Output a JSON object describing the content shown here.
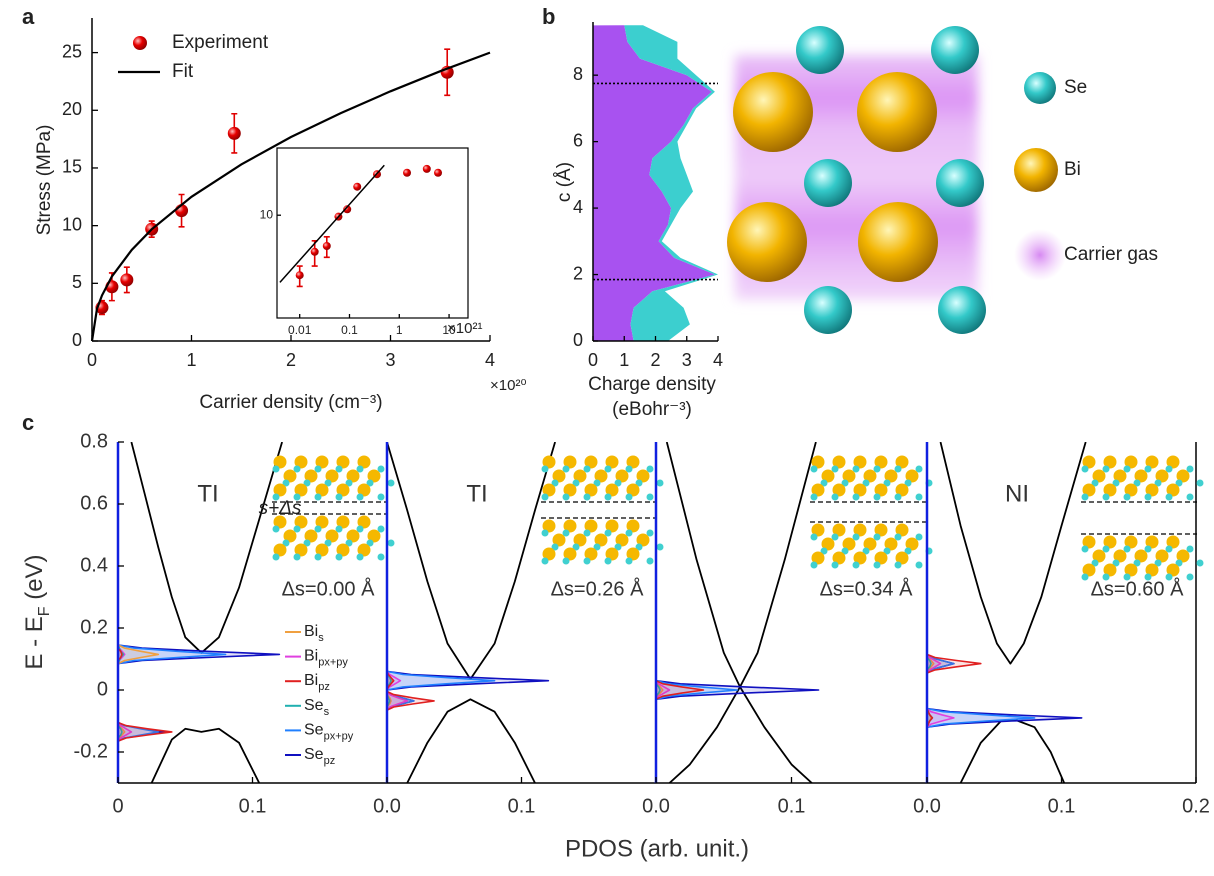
{
  "panel_letters": [
    "a",
    "b",
    "c"
  ],
  "structure": {
    "labels": [
      "Se",
      "Bi",
      "Carrier gas"
    ]
  },
  "chart_data": [
    {
      "type": "scatter",
      "xlabel": "Carrier density (cm⁻³)",
      "ylabel": "Stress (MPa)",
      "x_multiplier": "×10²⁰",
      "xlim": [
        0,
        4
      ],
      "xticks": [
        0,
        1,
        2,
        3,
        4
      ],
      "ylim": [
        0,
        28
      ],
      "yticks": [
        0,
        5,
        10,
        15,
        20,
        25
      ],
      "series": [
        {
          "name": "Experiment",
          "style": "markers",
          "color": "#e00000",
          "x": [
            0.1,
            0.2,
            0.35,
            0.6,
            0.9,
            1.43,
            3.57
          ],
          "values": [
            2.9,
            4.7,
            5.3,
            9.7,
            11.3,
            18,
            23.3
          ],
          "errors": [
            0.6,
            1.2,
            1.1,
            0.7,
            1.4,
            1.7,
            2.0
          ]
        },
        {
          "name": "Fit",
          "style": "line",
          "color": "#000000",
          "x": [
            0,
            0.05,
            0.1,
            0.2,
            0.4,
            0.6,
            1,
            1.5,
            2,
            2.5,
            3,
            3.5,
            4
          ],
          "values": [
            0,
            2.8,
            3.95,
            5.59,
            7.91,
            9.68,
            12.5,
            15.31,
            17.68,
            19.76,
            21.65,
            23.39,
            25
          ]
        }
      ]
    },
    {
      "type": "scatter",
      "x_multiplier": "×10²¹",
      "xlog": true,
      "ylog": true,
      "frame": true,
      "xlim": [
        0.0035,
        24
      ],
      "xticks": [
        0.01,
        0.1,
        1,
        10
      ],
      "ylim": [
        1.2,
        40
      ],
      "yticks": [
        10
      ],
      "series": [
        {
          "style": "markers",
          "color": "#e00000",
          "x": [
            0.01,
            0.02,
            0.035,
            0.06,
            0.09,
            0.143,
            0.357,
            1.43,
            3.57,
            6
          ],
          "values": [
            2.9,
            4.7,
            5.3,
            9.7,
            11.3,
            18,
            23.3,
            24,
            26,
            24
          ],
          "errors": [
            0.6,
            1.2,
            1.1,
            null,
            null,
            null,
            null,
            null,
            null,
            null
          ]
        },
        {
          "style": "line",
          "color": "#000000",
          "x": [
            0.004,
            0.5
          ],
          "values": [
            2.5,
            28
          ]
        }
      ]
    },
    {
      "type": "area_h",
      "xlabel": "Charge density",
      "xlabel_unit": "(eBohr⁻³)",
      "ylabel": "c (Å)",
      "xlim": [
        0,
        4
      ],
      "xticks": [
        0,
        1,
        2,
        3,
        4
      ],
      "ylim": [
        0,
        9.6
      ],
      "yticks": [
        0,
        2,
        4,
        6,
        8
      ],
      "hlines": [
        1.85,
        7.75
      ],
      "c": [
        0,
        0.5,
        1,
        1.5,
        2,
        2.5,
        3,
        3.5,
        4,
        4.5,
        5,
        5.5,
        6,
        6.5,
        7,
        7.5,
        8,
        8.5,
        9,
        9.5
      ],
      "series": [
        {
          "color": "#a852f0",
          "values": [
            1.3,
            1.2,
            1.3,
            1.9,
            3.9,
            2.6,
            2.1,
            2.4,
            2.5,
            2.2,
            1.8,
            1.9,
            2.5,
            2.9,
            3.2,
            3.8,
            3.0,
            1.5,
            1.1,
            1.0
          ]
        },
        {
          "color": "#3ccfcf",
          "values": [
            1.1,
            1.9,
            1.6,
            0.4,
            0.1,
            0.2,
            0.1,
            0.1,
            0.3,
            1.0,
            1.2,
            0.9,
            0.2,
            0.1,
            0.1,
            0.1,
            0.3,
            1.2,
            1.6,
            0.6
          ]
        }
      ]
    },
    {
      "type": "pdos",
      "label": "TI",
      "delta": "Δs=0.00 Å",
      "gap_label": "s+Δs",
      "xlabel": "PDOS (arb. unit.)",
      "ylabel": {
        "main": "E - E",
        "sub": "F",
        "unit": " (eV)"
      },
      "xlim": [
        0,
        0.2
      ],
      "xticks": [
        0,
        0.1
      ],
      "ylim": [
        -0.3,
        0.8
      ],
      "yticks": [
        -0.2,
        0,
        0.2,
        0.4,
        0.6,
        0.8
      ],
      "energies": [
        -0.165,
        -0.155,
        -0.145,
        -0.135,
        -0.125,
        -0.115,
        -0.105,
        0.085,
        0.095,
        0.105,
        0.115,
        0.125,
        0.135,
        0.145
      ],
      "series": [
        {
          "name": "Bi",
          "sub": "s",
          "color": "#f0a040",
          "values": [
            0,
            0.001,
            0.003,
            0.005,
            0.003,
            0.001,
            0,
            0,
            0.005,
            0.017,
            0.03,
            0.017,
            0.005,
            0
          ]
        },
        {
          "name": "Bi",
          "sub": "px+py",
          "color": "#e040e0",
          "values": [
            0,
            0.002,
            0.006,
            0.01,
            0.006,
            0.002,
            0,
            0,
            0.001,
            0.003,
            0.005,
            0.003,
            0.001,
            0
          ]
        },
        {
          "name": "Bi",
          "sub": "pz",
          "color": "#e02020",
          "values": [
            0,
            0.006,
            0.022,
            0.04,
            0.022,
            0.006,
            0,
            0,
            0,
            0.002,
            0.003,
            0.002,
            0,
            0
          ]
        },
        {
          "name": "Se",
          "sub": "s",
          "color": "#20b0b0",
          "values": [
            0,
            0,
            0.002,
            0.003,
            0.002,
            0,
            0,
            0,
            0.001,
            0.002,
            0.004,
            0.002,
            0.001,
            0
          ]
        },
        {
          "name": "Se",
          "sub": "px+py",
          "color": "#2080ff",
          "values": [
            0,
            0.005,
            0.017,
            0.03,
            0.017,
            0.005,
            0,
            0,
            0.012,
            0.044,
            0.08,
            0.044,
            0.012,
            0
          ]
        },
        {
          "name": "Se",
          "sub": "pz",
          "color": "#1010c0",
          "values": [
            0,
            0.005,
            0.019,
            0.035,
            0.019,
            0.005,
            0,
            0,
            0.018,
            0.066,
            0.12,
            0.066,
            0.018,
            0
          ]
        }
      ],
      "bands": [
        {
          "x": [
            0.01,
            0.02,
            0.03,
            0.04,
            0.05,
            0.062,
            0.075,
            0.09,
            0.105,
            0.122
          ],
          "values": [
            0.8,
            0.63,
            0.46,
            0.3,
            0.17,
            0.12,
            0.17,
            0.33,
            0.55,
            0.8
          ]
        },
        {
          "x": [
            0.025,
            0.04,
            0.05,
            0.062,
            0.075,
            0.09,
            0.105
          ],
          "values": [
            -0.3,
            -0.16,
            -0.125,
            -0.135,
            -0.125,
            -0.17,
            -0.3
          ]
        }
      ]
    },
    {
      "type": "pdos",
      "label": "TI",
      "delta": "Δs=0.26 Å",
      "xlim": [
        0,
        0.2
      ],
      "xticks": [
        {
          "value": 0,
          "label": "0.0"
        },
        0.1
      ],
      "ylim": [
        -0.3,
        0.8
      ],
      "energies": [
        -0.065,
        -0.055,
        -0.045,
        -0.035,
        -0.025,
        -0.015,
        -0.005,
        0,
        0.01,
        0.02,
        0.03,
        0.04,
        0.05,
        0.06
      ],
      "series": [
        {
          "color": "#f0a040",
          "values": [
            0,
            0,
            0.002,
            0.003,
            0.002,
            0,
            0,
            0,
            0.001,
            0.002,
            0.004,
            0.002,
            0.001,
            0
          ]
        },
        {
          "color": "#e040e0",
          "values": [
            0,
            0.002,
            0.008,
            0.015,
            0.008,
            0.002,
            0,
            0,
            0.002,
            0.006,
            0.01,
            0.006,
            0.002,
            0
          ]
        },
        {
          "color": "#e02020",
          "values": [
            0,
            0.005,
            0.019,
            0.035,
            0.019,
            0.005,
            0,
            0,
            0.001,
            0.003,
            0.005,
            0.003,
            0.001,
            0
          ]
        },
        {
          "color": "#20b0b0",
          "values": [
            0,
            0,
            0.001,
            0.002,
            0.001,
            0,
            0,
            0,
            0,
            0.002,
            0.003,
            0.002,
            0,
            0
          ]
        },
        {
          "color": "#2080ff",
          "values": [
            0,
            0.003,
            0.011,
            0.02,
            0.011,
            0.003,
            0,
            0,
            0.012,
            0.044,
            0.08,
            0.044,
            0.012,
            0
          ]
        },
        {
          "color": "#1010c0",
          "values": [
            0,
            0.003,
            0.011,
            0.02,
            0.011,
            0.003,
            0,
            0,
            0.018,
            0.066,
            0.12,
            0.066,
            0.018,
            0
          ]
        }
      ],
      "bands": [
        {
          "x": [
            0.0,
            0.015,
            0.03,
            0.045,
            0.062,
            0.08,
            0.095,
            0.11,
            0.125
          ],
          "values": [
            0.8,
            0.58,
            0.35,
            0.15,
            0.035,
            0.15,
            0.35,
            0.58,
            0.8
          ]
        },
        {
          "x": [
            0.015,
            0.03,
            0.045,
            0.062,
            0.08,
            0.095,
            0.11
          ],
          "values": [
            -0.3,
            -0.17,
            -0.07,
            -0.03,
            -0.07,
            -0.17,
            -0.3
          ]
        }
      ]
    },
    {
      "type": "pdos",
      "delta": "Δs=0.34 Å",
      "xlim": [
        0,
        0.2
      ],
      "xticks": [
        {
          "value": 0,
          "label": "0.0"
        },
        0.1
      ],
      "ylim": [
        -0.3,
        0.8
      ],
      "energies": [
        -0.03,
        -0.02,
        -0.01,
        0,
        0.01,
        0.02,
        0.03
      ],
      "series": [
        {
          "color": "#f0a040",
          "values": [
            0,
            0.001,
            0.003,
            0.005,
            0.003,
            0.001,
            0
          ]
        },
        {
          "color": "#e040e0",
          "values": [
            0,
            0.002,
            0.006,
            0.01,
            0.006,
            0.002,
            0
          ]
        },
        {
          "color": "#e02020",
          "values": [
            0,
            0.005,
            0.019,
            0.035,
            0.019,
            0.005,
            0
          ]
        },
        {
          "color": "#20b0b0",
          "values": [
            0,
            0,
            0.002,
            0.003,
            0.002,
            0,
            0
          ]
        },
        {
          "color": "#2080ff",
          "values": [
            0,
            0.009,
            0.033,
            0.06,
            0.033,
            0.009,
            0
          ]
        },
        {
          "color": "#1010c0",
          "values": [
            0,
            0.018,
            0.066,
            0.12,
            0.066,
            0.018,
            0
          ]
        }
      ],
      "bands": [
        {
          "x": [
            0.008,
            0.03,
            0.05,
            0.062,
            0.08,
            0.1,
            0.115
          ],
          "values": [
            0.8,
            0.42,
            0.12,
            0.01,
            -0.12,
            -0.24,
            -0.3
          ]
        },
        {
          "x": [
            0.01,
            0.025,
            0.045,
            0.062,
            0.075,
            0.095,
            0.118
          ],
          "values": [
            -0.3,
            -0.24,
            -0.12,
            0.01,
            0.12,
            0.42,
            0.8
          ]
        }
      ]
    },
    {
      "type": "pdos",
      "label": "NI",
      "delta": "Δs=0.60 Å",
      "xlim": [
        0,
        0.2
      ],
      "xticks": [
        {
          "value": 0,
          "label": "0.0"
        },
        0.1,
        0.2
      ],
      "ylim": [
        -0.3,
        0.8
      ],
      "energies": [
        -0.12,
        -0.11,
        -0.1,
        -0.09,
        -0.08,
        -0.07,
        -0.06,
        0.055,
        0.065,
        0.075,
        0.085,
        0.095,
        0.105,
        0.115
      ],
      "series": [
        {
          "color": "#f0a040",
          "values": [
            0,
            0,
            0.002,
            0.003,
            0.002,
            0,
            0,
            0,
            0.001,
            0.003,
            0.005,
            0.003,
            0.001,
            0
          ]
        },
        {
          "color": "#e040e0",
          "values": [
            0,
            0.003,
            0.011,
            0.02,
            0.011,
            0.003,
            0,
            0,
            0.002,
            0.006,
            0.01,
            0.006,
            0.002,
            0
          ]
        },
        {
          "color": "#e02020",
          "values": [
            0,
            0.001,
            0.002,
            0.004,
            0.002,
            0.001,
            0,
            0,
            0.006,
            0.022,
            0.04,
            0.022,
            0.006,
            0
          ]
        },
        {
          "color": "#20b0b0",
          "values": [
            0,
            0.001,
            0.002,
            0.004,
            0.002,
            0.001,
            0,
            0,
            0,
            0.002,
            0.003,
            0.002,
            0,
            0
          ]
        },
        {
          "color": "#2080ff",
          "values": [
            0,
            0.012,
            0.044,
            0.08,
            0.044,
            0.012,
            0,
            0,
            0.003,
            0.011,
            0.02,
            0.011,
            0.003,
            0
          ]
        },
        {
          "color": "#1010c0",
          "values": [
            0,
            0.017,
            0.063,
            0.115,
            0.063,
            0.017,
            0,
            0,
            0.003,
            0.011,
            0.02,
            0.011,
            0.003,
            0
          ]
        }
      ],
      "bands": [
        {
          "x": [
            0.01,
            0.025,
            0.04,
            0.052,
            0.062,
            0.072,
            0.085,
            0.1,
            0.118
          ],
          "values": [
            0.8,
            0.53,
            0.3,
            0.15,
            0.085,
            0.15,
            0.3,
            0.53,
            0.8
          ]
        },
        {
          "x": [
            0.025,
            0.04,
            0.055,
            0.065,
            0.08,
            0.092,
            0.102
          ],
          "values": [
            -0.3,
            -0.17,
            -0.1,
            -0.095,
            -0.12,
            -0.2,
            -0.3
          ]
        }
      ]
    }
  ]
}
